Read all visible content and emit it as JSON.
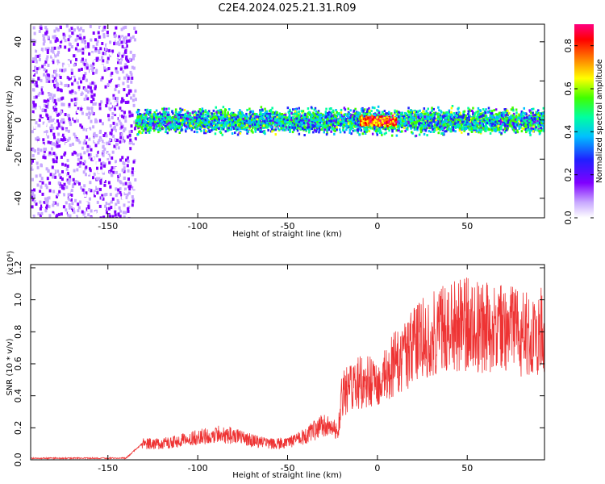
{
  "figure": {
    "title": "C2E4.2024.025.21.31.R09"
  },
  "chart_data": [
    {
      "type": "heatmap",
      "xlabel": "Height of straight line (km)",
      "ylabel": "Frequency (Hz)",
      "xlim": [
        -193,
        93
      ],
      "ylim": [
        -50,
        49
      ],
      "xticks": [
        -150,
        -100,
        -50,
        0,
        50
      ],
      "yticks": [
        -40,
        -20,
        0,
        20,
        40
      ],
      "colorbar": {
        "label": "Normalized spectral amplitude",
        "range": [
          0.0,
          0.9
        ],
        "ticks": [
          0.0,
          0.2,
          0.4,
          0.6,
          0.8
        ],
        "colormap": [
          "#ffffff",
          "#c8a8ff",
          "#8000ff",
          "#2020ff",
          "#00c0ff",
          "#00ffa0",
          "#40ff00",
          "#ffff00",
          "#ff8000",
          "#ff0000",
          "#ff0080"
        ]
      },
      "regions": [
        {
          "x_range": [
            -193,
            -135
          ],
          "freq_range": [
            -50,
            49
          ],
          "amplitude": [
            0.0,
            0.2
          ],
          "description": "broadband scatter"
        },
        {
          "x_range": [
            -135,
            93
          ],
          "freq_center": 0,
          "freq_halfwidth": 5,
          "amplitude": [
            0.2,
            0.6
          ]
        },
        {
          "x_range": [
            -10,
            10
          ],
          "freq_center": 0,
          "freq_halfwidth": 2,
          "amplitude": [
            0.6,
            0.9
          ]
        }
      ]
    },
    {
      "type": "line",
      "xlabel": "Height of straight line (km)",
      "ylabel": "SNR (10 * v/v)",
      "y_scale_label": "(x10⁴)",
      "xlim": [
        -193,
        93
      ],
      "ylim": [
        0,
        1.22
      ],
      "xticks": [
        -150,
        -100,
        -50,
        0,
        50
      ],
      "yticks": [
        0.0,
        0.2,
        0.4,
        0.6,
        0.8,
        1.0,
        1.2
      ],
      "color": "#ee3333",
      "series": [
        {
          "x": [
            -193,
            -170,
            -140,
            -131,
            -128,
            -120,
            -110,
            -100,
            -90,
            -80,
            -70,
            -60,
            -50,
            -40,
            -30,
            -25,
            -22,
            -20,
            -15,
            -10,
            -5,
            0,
            5,
            10,
            15,
            20,
            25,
            30,
            40,
            50,
            60,
            70,
            80,
            90,
            93
          ],
          "y": [
            0.01,
            0.01,
            0.01,
            0.1,
            0.1,
            0.1,
            0.12,
            0.14,
            0.16,
            0.15,
            0.12,
            0.1,
            0.1,
            0.15,
            0.22,
            0.2,
            0.18,
            0.4,
            0.45,
            0.48,
            0.5,
            0.45,
            0.55,
            0.6,
            0.65,
            0.7,
            0.75,
            0.8,
            0.85,
            0.85,
            0.82,
            0.82,
            0.8,
            0.8,
            0.8
          ]
        }
      ]
    }
  ]
}
